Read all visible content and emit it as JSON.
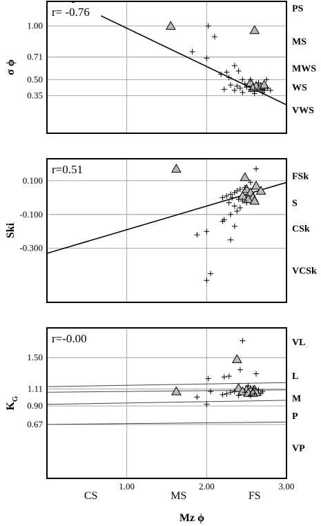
{
  "chart_data": [
    {
      "type": "scatter",
      "ylabel": "σ ϕ",
      "y_ticks": [
        {
          "value": 1.0,
          "label": "1.00"
        },
        {
          "value": 0.71,
          "label": "0.71"
        },
        {
          "value": 0.5,
          "label": "0.50"
        },
        {
          "value": 0.35,
          "label": "0.35"
        }
      ],
      "class_labels": [
        {
          "value": 1.17,
          "label": "PS"
        },
        {
          "value": 0.86,
          "label": "MS"
        },
        {
          "value": 0.61,
          "label": "MWS"
        },
        {
          "value": 0.43,
          "label": "WS"
        },
        {
          "value": 0.22,
          "label": "VWS"
        }
      ],
      "annotation": "r= -0.76",
      "xlim": [
        0.0,
        3.0
      ],
      "ylim": [
        0.0,
        1.23
      ],
      "grid_x": [
        1.0,
        2.0
      ],
      "fit_line": [
        [
          0.3,
          1.23
        ],
        [
          3.0,
          0.265
        ]
      ],
      "series": [
        {
          "marker": "triangle",
          "points": [
            [
              1.55,
              1.0
            ],
            [
              2.6,
              0.96
            ],
            [
              2.55,
              0.47
            ],
            [
              2.62,
              0.44
            ],
            [
              2.68,
              0.43
            ],
            [
              2.72,
              0.45
            ],
            [
              2.58,
              0.42
            ]
          ]
        },
        {
          "marker": "plus",
          "points": [
            [
              2.02,
              1.0
            ],
            [
              2.1,
              0.9
            ],
            [
              1.82,
              0.76
            ],
            [
              2.0,
              0.7
            ],
            [
              2.35,
              0.63
            ],
            [
              2.18,
              0.55
            ],
            [
              2.25,
              0.57
            ],
            [
              2.28,
              0.52
            ],
            [
              2.4,
              0.58
            ],
            [
              2.45,
              0.5
            ],
            [
              2.3,
              0.45
            ],
            [
              2.38,
              0.44
            ],
            [
              2.42,
              0.42
            ],
            [
              2.35,
              0.4
            ],
            [
              2.5,
              0.43
            ],
            [
              2.55,
              0.41
            ],
            [
              2.6,
              0.4
            ],
            [
              2.68,
              0.41
            ],
            [
              2.72,
              0.4
            ],
            [
              2.76,
              0.42
            ],
            [
              2.8,
              0.4
            ],
            [
              2.75,
              0.5
            ],
            [
              2.65,
              0.47
            ],
            [
              2.55,
              0.5
            ],
            [
              2.48,
              0.46
            ],
            [
              2.22,
              0.41
            ],
            [
              2.7,
              0.38
            ],
            [
              2.45,
              0.38
            ],
            [
              2.6,
              0.37
            ]
          ]
        }
      ]
    },
    {
      "type": "scatter",
      "ylabel": "Ski",
      "y_ticks": [
        {
          "value": 0.1,
          "label": "0.100"
        },
        {
          "value": -0.1,
          "label": "-0.100"
        },
        {
          "value": -0.3,
          "label": "-0.300"
        }
      ],
      "class_labels": [
        {
          "value": 0.13,
          "label": "FSk"
        },
        {
          "value": -0.03,
          "label": "S"
        },
        {
          "value": -0.18,
          "label": "CSk"
        },
        {
          "value": -0.43,
          "label": "VCSk"
        }
      ],
      "annotation": "r=0.51",
      "xlim": [
        0.0,
        3.0
      ],
      "ylim": [
        -0.62,
        0.23
      ],
      "grid_x": [
        1.0,
        2.0
      ],
      "grid_y": [
        0.1,
        -0.1,
        -0.3
      ],
      "fit_line": [
        [
          0.0,
          -0.33
        ],
        [
          3.0,
          0.09
        ]
      ],
      "series": [
        {
          "marker": "triangle",
          "points": [
            [
              1.62,
              0.17
            ],
            [
              2.48,
              0.12
            ],
            [
              2.62,
              0.07
            ],
            [
              2.5,
              0.05
            ],
            [
              2.55,
              0.03
            ],
            [
              2.45,
              0.01
            ],
            [
              2.58,
              0.0
            ],
            [
              2.68,
              0.04
            ],
            [
              2.52,
              -0.01
            ],
            [
              2.6,
              -0.02
            ]
          ]
        },
        {
          "marker": "plus",
          "points": [
            [
              2.62,
              0.17
            ],
            [
              2.55,
              0.09
            ],
            [
              2.48,
              0.06
            ],
            [
              2.42,
              0.05
            ],
            [
              2.38,
              0.04
            ],
            [
              2.35,
              0.03
            ],
            [
              2.3,
              0.02
            ],
            [
              2.25,
              0.01
            ],
            [
              2.2,
              0.0
            ],
            [
              2.32,
              0.0
            ],
            [
              2.4,
              -0.01
            ],
            [
              2.45,
              -0.02
            ],
            [
              2.5,
              -0.03
            ],
            [
              2.28,
              -0.03
            ],
            [
              2.35,
              -0.05
            ],
            [
              2.42,
              -0.06
            ],
            [
              2.38,
              -0.08
            ],
            [
              2.3,
              -0.1
            ],
            [
              2.22,
              -0.13
            ],
            [
              2.2,
              -0.14
            ],
            [
              2.35,
              -0.17
            ],
            [
              2.0,
              -0.2
            ],
            [
              1.88,
              -0.22
            ],
            [
              2.3,
              -0.25
            ],
            [
              2.05,
              -0.45
            ],
            [
              2.0,
              -0.49
            ]
          ]
        }
      ]
    },
    {
      "type": "scatter",
      "ylabel": "K_G",
      "y_ticks": [
        {
          "value": 1.5,
          "label": "1.50"
        },
        {
          "value": 1.11,
          "label": "1.11"
        },
        {
          "value": 0.9,
          "label": "0.90"
        },
        {
          "value": 0.67,
          "label": "0.67"
        }
      ],
      "class_labels": [
        {
          "value": 1.7,
          "label": "VL"
        },
        {
          "value": 1.28,
          "label": "L"
        },
        {
          "value": 1.0,
          "label": "M"
        },
        {
          "value": 0.78,
          "label": "P"
        },
        {
          "value": 0.38,
          "label": "VP"
        }
      ],
      "annotation": "r=-0.00",
      "xlim": [
        0.0,
        3.0
      ],
      "ylim": [
        0.0,
        1.87
      ],
      "grid_x": [
        1.0,
        2.0
      ],
      "ref_lines": [
        [
          [
            0.0,
            1.14
          ],
          [
            3.0,
            1.19
          ]
        ],
        [
          [
            0.0,
            1.07
          ],
          [
            3.0,
            1.1
          ]
        ],
        [
          [
            0.0,
            0.92
          ],
          [
            3.0,
            0.97
          ]
        ],
        [
          [
            0.0,
            0.67
          ],
          [
            3.0,
            0.7
          ]
        ]
      ],
      "series": [
        {
          "marker": "triangle",
          "points": [
            [
              1.62,
              1.08
            ],
            [
              2.38,
              1.48
            ],
            [
              2.4,
              1.12
            ],
            [
              2.5,
              1.1
            ],
            [
              2.45,
              1.08
            ],
            [
              2.55,
              1.09
            ],
            [
              2.6,
              1.1
            ],
            [
              2.62,
              1.07
            ],
            [
              2.52,
              1.06
            ],
            [
              2.58,
              1.06
            ]
          ]
        },
        {
          "marker": "plus",
          "points": [
            [
              2.45,
              1.71
            ],
            [
              2.42,
              1.35
            ],
            [
              2.22,
              1.26
            ],
            [
              2.28,
              1.27
            ],
            [
              2.02,
              1.24
            ],
            [
              2.62,
              1.3
            ],
            [
              2.52,
              1.15
            ],
            [
              2.58,
              1.12
            ],
            [
              2.65,
              1.1
            ],
            [
              2.7,
              1.08
            ],
            [
              2.3,
              1.07
            ],
            [
              2.35,
              1.08
            ],
            [
              2.48,
              1.07
            ],
            [
              2.25,
              1.05
            ],
            [
              2.2,
              1.04
            ],
            [
              2.05,
              1.08
            ],
            [
              1.88,
              1.01
            ],
            [
              2.0,
              0.92
            ],
            [
              2.6,
              1.05
            ],
            [
              2.55,
              1.03
            ],
            [
              2.68,
              1.06
            ],
            [
              2.4,
              1.03
            ]
          ]
        }
      ]
    }
  ],
  "x_axis": {
    "xlabel": "Mz ϕ",
    "ticks": [
      {
        "value": 1.0,
        "label": "1.00"
      },
      {
        "value": 2.0,
        "label": "2.00"
      },
      {
        "value": 3.0,
        "label": "3.00"
      }
    ],
    "class_labels": [
      {
        "value": 0.55,
        "label": "CS"
      },
      {
        "value": 1.65,
        "label": "MS"
      },
      {
        "value": 2.6,
        "label": "FS"
      }
    ]
  }
}
